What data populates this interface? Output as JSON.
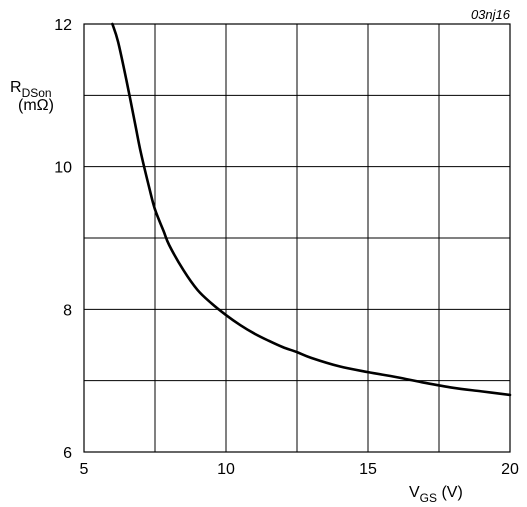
{
  "figure_id": "03nj16",
  "chart_data": {
    "type": "line",
    "title": "",
    "xlabel": {
      "main": "V",
      "sub": "GS",
      "unit": " (V)"
    },
    "ylabel": {
      "main": "R",
      "sub": "DSon",
      "unit": "(mΩ)"
    },
    "xlim": [
      5,
      20
    ],
    "ylim": [
      6,
      12
    ],
    "x_ticks": [
      5,
      10,
      15,
      20
    ],
    "y_ticks": [
      6,
      8,
      10,
      12
    ],
    "x_gridlines": [
      7.5,
      10,
      12.5,
      15,
      17.5
    ],
    "y_gridlines": [
      7,
      8,
      9,
      10,
      11
    ],
    "grid": true,
    "line_color": "#000000",
    "series": [
      {
        "x": [
          6.0,
          6.2,
          6.5,
          6.8,
          7.0,
          7.3,
          7.5,
          7.8,
          8.0,
          8.5,
          9.0,
          9.5,
          10.0,
          10.5,
          11.0,
          11.5,
          12.0,
          12.5,
          13.0,
          14.0,
          15.0,
          16.0,
          17.0,
          18.0,
          19.0,
          20.0
        ],
        "y": [
          12.0,
          11.75,
          11.2,
          10.6,
          10.2,
          9.7,
          9.4,
          9.1,
          8.9,
          8.55,
          8.27,
          8.08,
          7.92,
          7.78,
          7.66,
          7.56,
          7.47,
          7.4,
          7.32,
          7.2,
          7.12,
          7.05,
          6.97,
          6.9,
          6.85,
          6.8
        ]
      }
    ]
  }
}
